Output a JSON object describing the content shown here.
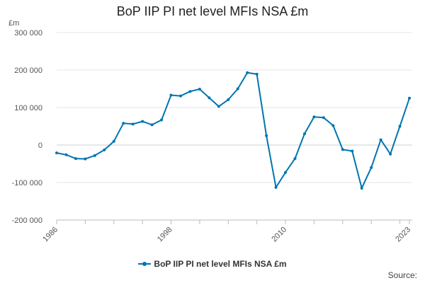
{
  "chart_data": {
    "type": "line",
    "title": "BoP IIP PI net level MFIs NSA £m",
    "unit_label": "£m",
    "source_label": "Source:",
    "color": "#0075b0",
    "ylim": [
      -200000,
      300000
    ],
    "yticks": [
      300000,
      200000,
      100000,
      0,
      -100000,
      -200000
    ],
    "ytick_labels": [
      "300 000",
      "200 000",
      "100 000",
      "0",
      "-100 000",
      "-200 000"
    ],
    "xlim": [
      1986,
      2023
    ],
    "xticks": [
      1986,
      1998,
      2010,
      2023
    ],
    "xtick_labels": [
      "1986",
      "1998",
      "2010",
      "2023"
    ],
    "legend_position": "bottom",
    "series": [
      {
        "name": "BoP IIP PI net level MFIs NSA £m",
        "x": [
          1986,
          1987,
          1988,
          1989,
          1990,
          1991,
          1992,
          1993,
          1994,
          1995,
          1996,
          1997,
          1998,
          1999,
          2000,
          2001,
          2002,
          2003,
          2004,
          2005,
          2006,
          2007,
          2008,
          2009,
          2010,
          2011,
          2012,
          2013,
          2014,
          2015,
          2016,
          2017,
          2018,
          2019,
          2020,
          2021,
          2022,
          2023
        ],
        "values": [
          -21000,
          -26000,
          -36000,
          -37000,
          -28000,
          -13000,
          10000,
          58000,
          56000,
          63000,
          54000,
          67000,
          133000,
          131000,
          143000,
          149000,
          126000,
          103000,
          121000,
          150000,
          193000,
          189000,
          25000,
          -113000,
          -73000,
          -36000,
          30000,
          75000,
          73000,
          52000,
          -12000,
          -16000,
          -115000,
          -60000,
          14000,
          -24000,
          50000,
          125000
        ]
      }
    ]
  }
}
